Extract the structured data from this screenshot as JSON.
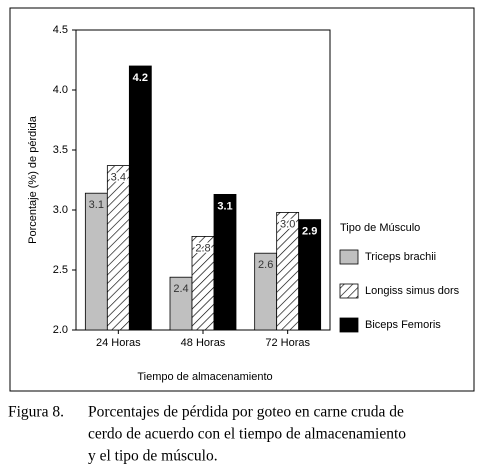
{
  "chart_data": {
    "type": "bar",
    "x_label": "Tiempo de almacenamiento",
    "y_label": "Porcentaje (%) de pérdida",
    "categories": [
      "24 Horas",
      "48 Horas",
      "72 Horas"
    ],
    "series": [
      {
        "name": "Triceps brachii",
        "color": "#c0c0c0",
        "values": [
          3.14,
          2.44,
          2.64
        ],
        "value_labels": [
          "3.1",
          "2.4",
          "2.6"
        ]
      },
      {
        "name": "Longiss simus dors",
        "color": "#ffffff",
        "hatch": true,
        "values": [
          3.37,
          2.78,
          2.98
        ],
        "value_labels": [
          "3.4",
          "2.8",
          "3.0"
        ]
      },
      {
        "name": "Biceps Femoris",
        "color": "#000000",
        "values": [
          4.2,
          3.13,
          2.92
        ],
        "value_labels": [
          "4.2",
          "3.1",
          "2.9"
        ]
      }
    ],
    "legend_title": "Tipo de Músculo",
    "ylim": [
      2,
      4.5
    ],
    "yticks": [
      {
        "value": 2,
        "label": "2.0"
      },
      2.5,
      {
        "value": 3,
        "label": "3.0"
      },
      3.5,
      {
        "value": 4,
        "label": "4.0"
      },
      4.5
    ]
  },
  "caption": {
    "label": "Figura 8.",
    "lines": [
      "Porcentajes de pérdida por goteo en carne cruda de",
      "cerdo de acuerdo con el tiempo de almacenamiento",
      "y el tipo de músculo."
    ]
  }
}
